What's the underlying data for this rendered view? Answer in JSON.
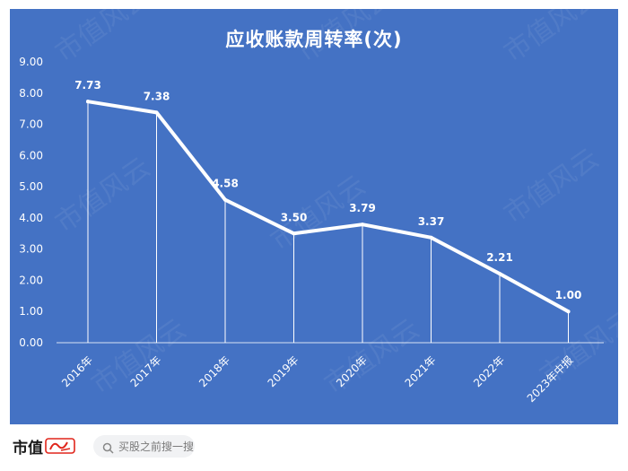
{
  "chart_data": {
    "type": "line",
    "title": "应收账款周转率(次)",
    "categories": [
      "2016年",
      "2017年",
      "2018年",
      "2019年",
      "2020年",
      "2021年",
      "2022年",
      "2023年中报"
    ],
    "series": [
      {
        "values": [
          7.73,
          7.38,
          4.58,
          3.5,
          3.79,
          3.37,
          2.21,
          1.0
        ]
      }
    ],
    "data_labels": [
      "7.73",
      "7.38",
      "4.58",
      "3.50",
      "3.79",
      "3.37",
      "2.21",
      "1.00"
    ],
    "y_ticks": [
      "0.00",
      "1.00",
      "2.00",
      "3.00",
      "4.00",
      "5.00",
      "6.00",
      "7.00",
      "8.00",
      "9.00"
    ],
    "ylim": [
      0,
      9
    ],
    "xlabel": "",
    "ylabel": "",
    "grid": false,
    "drop_lines": true,
    "legend": "none",
    "colors": {
      "background": "#4472c4",
      "line": "#ffffff",
      "text": "#ffffff"
    }
  },
  "watermark": "市值风云",
  "footer": {
    "brand": "市值",
    "search_text": "买股之前搜一搜"
  }
}
